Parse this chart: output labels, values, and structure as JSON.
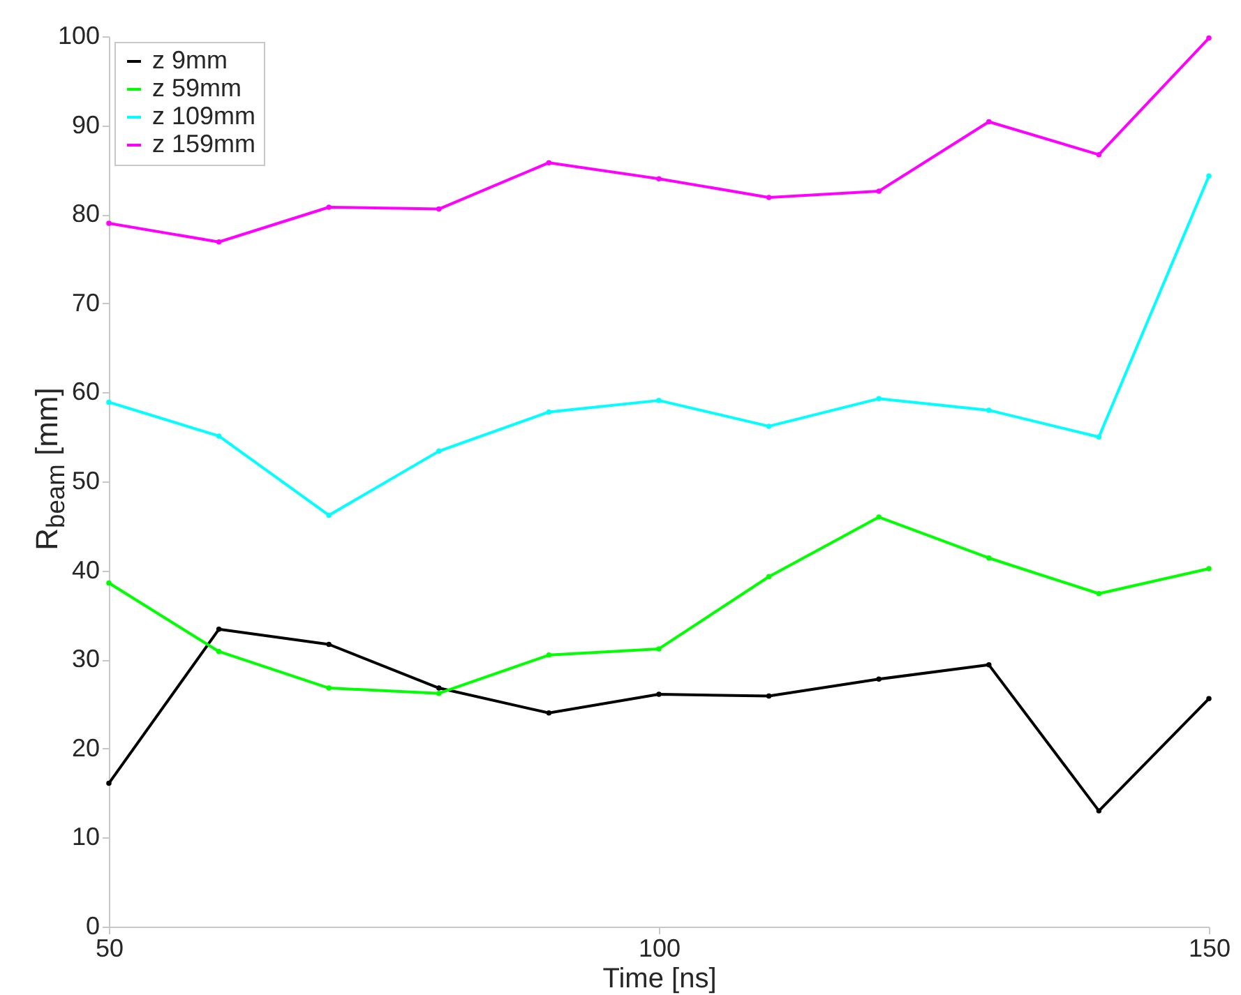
{
  "chart_data": {
    "type": "line",
    "xlabel": "Time [ns]",
    "ylabel": "R$_{beam}$ [mm]",
    "x": [
      50,
      60,
      70,
      80,
      90,
      100,
      110,
      120,
      130,
      140,
      150
    ],
    "xlim": [
      50,
      150
    ],
    "xticks": [
      50,
      100,
      150
    ],
    "ylim": [
      0,
      100
    ],
    "yticks": [
      0,
      10,
      20,
      30,
      40,
      50,
      60,
      70,
      80,
      90,
      100
    ],
    "grid": false,
    "legend": "top left",
    "marker": "circle",
    "line_style": "solid",
    "series": [
      {
        "name": "z 9mm",
        "color": "#000000",
        "values": [
          16.1,
          33.4,
          31.7,
          26.8,
          24.0,
          26.1,
          25.9,
          27.8,
          29.4,
          13.0,
          25.6
        ]
      },
      {
        "name": "z 59mm",
        "color": "#00ff00",
        "values": [
          38.6,
          30.9,
          26.8,
          26.2,
          30.5,
          31.2,
          39.3,
          46.0,
          41.4,
          37.4,
          40.2
        ]
      },
      {
        "name": "z 109mm",
        "color": "#00ffff",
        "values": [
          58.9,
          55.1,
          46.2,
          53.4,
          57.8,
          59.1,
          56.2,
          59.3,
          58.0,
          55.0,
          84.3
        ]
      },
      {
        "name": "z 159mm",
        "color": "#ff00ff",
        "values": [
          79.0,
          76.9,
          80.8,
          80.6,
          85.8,
          84.0,
          81.9,
          82.6,
          90.4,
          86.7,
          99.8
        ]
      }
    ]
  }
}
